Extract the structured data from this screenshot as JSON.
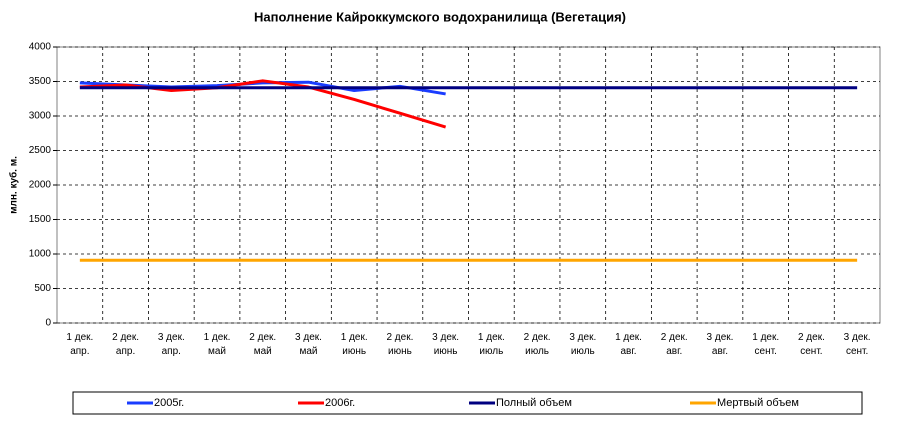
{
  "chart_data": {
    "type": "line",
    "title": "Наполнение Кайроккумского водохранилища (Вегетация)",
    "y_label": "млн. куб. м.",
    "categories": [
      "1 дек.\nапр.",
      "2 дек.\nапр.",
      "3 дек.\nапр.",
      "1 дек.\nмай",
      "2 дек.\nмай",
      "3 дек.\nмай",
      "1 дек.\nиюнь",
      "2 дек.\nиюнь",
      "3 дек.\nиюнь",
      "1 дек.\nиюль",
      "2 дек.\nиюль",
      "3 дек.\nиюль",
      "1 дек.\nавг.",
      "2 дек.\nавг.",
      "3 дек.\nавг.",
      "1 дек.\nсент.",
      "2 дек.\nсент.",
      "3 дек.\nсент."
    ],
    "series": [
      {
        "name": "2005г.",
        "color": "#1a3cff",
        "values": [
          3480,
          3450,
          3420,
          3440,
          3480,
          3490,
          3370,
          3430,
          3320,
          null,
          null,
          null,
          null,
          null,
          null,
          null,
          null,
          null
        ]
      },
      {
        "name": "2006г.",
        "color": "#ff0000",
        "values": [
          3420,
          3450,
          3370,
          3410,
          3510,
          3420,
          3240,
          3040,
          2840,
          null,
          null,
          null,
          null,
          null,
          null,
          null,
          null,
          null
        ]
      },
      {
        "name": "Полный объем",
        "color": "#000080",
        "values": [
          3410,
          3410,
          3410,
          3410,
          3410,
          3410,
          3410,
          3410,
          3410,
          3410,
          3410,
          3410,
          3410,
          3410,
          3410,
          3410,
          3410,
          3410
        ]
      },
      {
        "name": "Мертвый объем",
        "color": "#ffa500",
        "values": [
          910,
          910,
          910,
          910,
          910,
          910,
          910,
          910,
          910,
          910,
          910,
          910,
          910,
          910,
          910,
          910,
          910,
          910
        ]
      }
    ],
    "ylim": [
      0,
      4000
    ],
    "yticks": [
      0,
      500,
      1000,
      1500,
      2000,
      2500,
      3000,
      3500,
      4000
    ],
    "grid": true
  }
}
